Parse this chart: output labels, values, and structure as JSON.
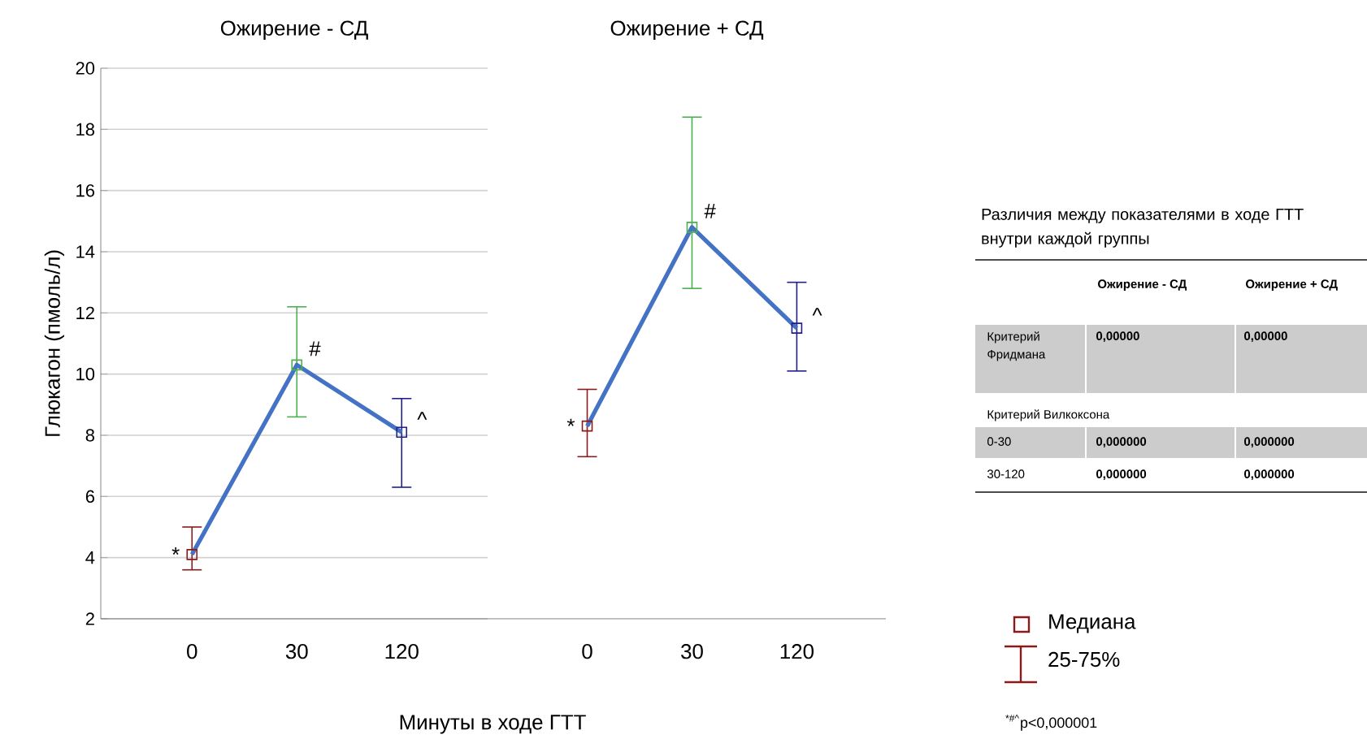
{
  "chart_data": [
    {
      "type": "line",
      "title": "Ожирение - СД",
      "xlabel": "Минуты в ходе ГТТ",
      "ylabel": "Глюкагон (пмоль/л)",
      "categories": [
        "0",
        "30",
        "120"
      ],
      "values": [
        4.1,
        10.3,
        8.1
      ],
      "errors": [
        [
          3.6,
          5.0
        ],
        [
          8.6,
          12.2
        ],
        [
          6.3,
          9.2
        ]
      ],
      "color": "#4472c4",
      "colors": [
        "#8b1a1a",
        "#4caf50",
        "#1f1f8f"
      ],
      "marker": "square",
      "ylim": [
        2,
        20
      ],
      "yticks": [
        2,
        4,
        6,
        8,
        10,
        12,
        14,
        16,
        18,
        20
      ],
      "grid": "y",
      "annotations": [
        {
          "text": "*",
          "x": "0",
          "y": 4.1
        },
        {
          "text": "#",
          "x": "30",
          "y": 10.3
        },
        {
          "text": "^",
          "x": "120",
          "y": 8.1
        }
      ]
    },
    {
      "type": "line",
      "title": "Ожирение + СД",
      "categories": [
        "0",
        "30",
        "120"
      ],
      "values": [
        8.3,
        14.8,
        11.5
      ],
      "errors": [
        [
          7.3,
          9.5
        ],
        [
          12.8,
          18.4
        ],
        [
          10.1,
          13.0
        ]
      ],
      "color": "#4472c4",
      "colors": [
        "#8b1a1a",
        "#4caf50",
        "#1f1f8f"
      ],
      "marker": "square",
      "ylim": [
        2,
        20
      ],
      "yticks": [
        2,
        4,
        6,
        8,
        10,
        12,
        14,
        16,
        18,
        20
      ],
      "grid": "y",
      "tick_labels": "x",
      "annotations": [
        {
          "text": "*",
          "x": "0",
          "y": 8.3
        },
        {
          "text": "#",
          "x": "30",
          "y": 14.8
        },
        {
          "text": "^",
          "x": "120",
          "y": 11.5
        }
      ]
    },
    {
      "type": "other",
      "title": "Различия между показателями в ходе ГТТ внутри каждой группы",
      "annotations": [
        "Ожирение - СД",
        "Ожирение + СД",
        "Критерий Фридмана",
        "0,00000",
        "0,00000",
        "Критерий Вилкоксона",
        "0-30",
        "0,000000",
        "0,000000",
        "30-120",
        "0,000000",
        "0,000000",
        "Медиана",
        "25-75%",
        "$^{*#^}$p<0,000001"
      ]
    }
  ]
}
